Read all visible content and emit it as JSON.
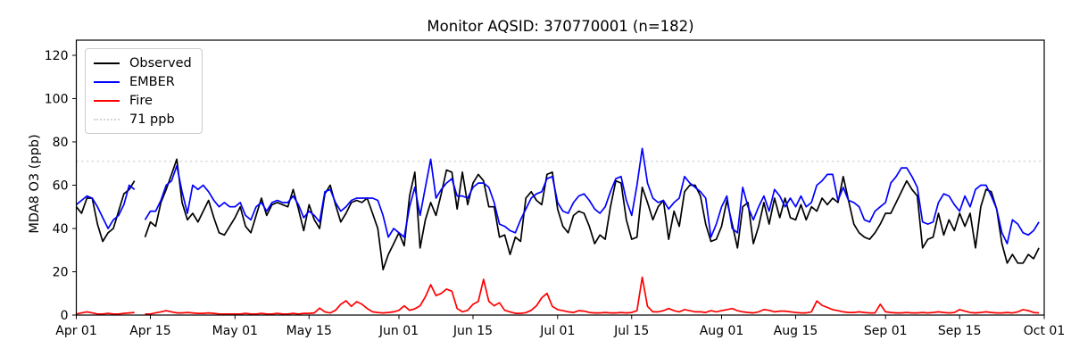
{
  "title": "Monitor AQSID: 370770001 (n=182)",
  "chart_data": {
    "type": "line",
    "title": "Monitor AQSID: 370770001 (n=182)",
    "xlabel": "",
    "ylabel": "MDA8 O3 (ppb)",
    "ylim": [
      0,
      127
    ],
    "y_ticks": [
      0,
      20,
      40,
      60,
      80,
      100,
      120
    ],
    "x_total_days": 183,
    "x_ticks": [
      {
        "label": "Apr 01",
        "day": 0
      },
      {
        "label": "Apr 15",
        "day": 14
      },
      {
        "label": "May 01",
        "day": 30
      },
      {
        "label": "May 15",
        "day": 44
      },
      {
        "label": "Jun 01",
        "day": 61
      },
      {
        "label": "Jun 15",
        "day": 75
      },
      {
        "label": "Jul 01",
        "day": 91
      },
      {
        "label": "Jul 15",
        "day": 105
      },
      {
        "label": "Aug 01",
        "day": 122
      },
      {
        "label": "Aug 15",
        "day": 136
      },
      {
        "label": "Sep 01",
        "day": 153
      },
      {
        "label": "Sep 15",
        "day": 167
      },
      {
        "label": "Oct 01",
        "day": 183
      }
    ],
    "grid": false,
    "legend_position": "upper left",
    "threshold": {
      "value": 71,
      "label": "71 ppb",
      "color": "#d3d3d3",
      "style": "dotted"
    },
    "series": [
      {
        "name": "Observed",
        "color": "#000000",
        "values": [
          50,
          47,
          54,
          54,
          42,
          34,
          38,
          40,
          48,
          56,
          58,
          62,
          null,
          36,
          43,
          41,
          52,
          58,
          65,
          72,
          52,
          44,
          47,
          43,
          48,
          53,
          45,
          38,
          37,
          41,
          45,
          50,
          41,
          38,
          46,
          54,
          46,
          51,
          52,
          51,
          50,
          58,
          49,
          39,
          51,
          44,
          40,
          56,
          60,
          51,
          43,
          47,
          52,
          53,
          52,
          54,
          47,
          40,
          21,
          28,
          33,
          38,
          32,
          55,
          66,
          31,
          44,
          52,
          46,
          56,
          67,
          66,
          49,
          66,
          51,
          61,
          65,
          62,
          50,
          50,
          36,
          37,
          28,
          36,
          34,
          54,
          57,
          53,
          51,
          65,
          66,
          49,
          41,
          38,
          46,
          48,
          47,
          41,
          33,
          37,
          35,
          50,
          62,
          61,
          44,
          35,
          36,
          59,
          52,
          44,
          50,
          53,
          35,
          48,
          41,
          57,
          60,
          60,
          55,
          42,
          34,
          35,
          41,
          53,
          42,
          31,
          50,
          52,
          33,
          41,
          52,
          42,
          54,
          45,
          54,
          45,
          44,
          51,
          44,
          50,
          48,
          54,
          51,
          54,
          52,
          64,
          53,
          42,
          38,
          36,
          35,
          38,
          42,
          47,
          47,
          52,
          57,
          62,
          58,
          55,
          31,
          35,
          36,
          47,
          37,
          44,
          39,
          47,
          41,
          47,
          31,
          50,
          58,
          57,
          49,
          33,
          24,
          28,
          24,
          24,
          28,
          26,
          31
        ]
      },
      {
        "name": "EMBER",
        "color": "#0000ff",
        "values": [
          51,
          53,
          55,
          54,
          50,
          45,
          40,
          44,
          46,
          51,
          60,
          58,
          null,
          44,
          48,
          48,
          53,
          60,
          62,
          69,
          57,
          47,
          60,
          58,
          60,
          57,
          53,
          50,
          52,
          50,
          50,
          52,
          46,
          44,
          50,
          52,
          48,
          52,
          53,
          52,
          52,
          55,
          51,
          45,
          48,
          46,
          43,
          57,
          58,
          52,
          48,
          50,
          53,
          54,
          54,
          54,
          54,
          53,
          46,
          36,
          40,
          38,
          36,
          50,
          59,
          46,
          59,
          72,
          54,
          58,
          61,
          63,
          55,
          55,
          54,
          59,
          61,
          61,
          59,
          52,
          42,
          41,
          39,
          38,
          44,
          49,
          54,
          56,
          57,
          63,
          64,
          52,
          48,
          47,
          52,
          55,
          56,
          53,
          49,
          47,
          50,
          57,
          63,
          64,
          53,
          46,
          60,
          77,
          61,
          54,
          52,
          53,
          49,
          52,
          54,
          64,
          61,
          59,
          57,
          54,
          36,
          42,
          50,
          55,
          40,
          38,
          59,
          50,
          44,
          50,
          55,
          48,
          58,
          55,
          50,
          54,
          50,
          55,
          50,
          52,
          60,
          62,
          65,
          65,
          53,
          59,
          53,
          52,
          50,
          44,
          43,
          48,
          50,
          52,
          61,
          64,
          68,
          68,
          64,
          59,
          43,
          42,
          43,
          52,
          56,
          55,
          51,
          48,
          55,
          50,
          58,
          60,
          60,
          55,
          49,
          38,
          33,
          44,
          42,
          38,
          37,
          39,
          43
        ]
      },
      {
        "name": "Fire",
        "color": "#ff0000",
        "values": [
          0.5,
          1,
          1.5,
          1,
          0.5,
          0.5,
          0.8,
          0.5,
          0.5,
          0.8,
          1,
          1.2,
          null,
          0.5,
          0.5,
          1,
          1.5,
          2,
          1.5,
          1,
          1,
          1.2,
          1,
          0.8,
          0.8,
          1,
          0.8,
          0.5,
          0.5,
          0.5,
          0.5,
          0.5,
          0.8,
          0.5,
          0.5,
          0.8,
          0.5,
          0.5,
          0.8,
          0.5,
          0.5,
          0.8,
          0.5,
          0.8,
          0.8,
          1,
          3.2,
          1.5,
          1,
          2.2,
          5,
          6.6,
          4,
          6.2,
          5,
          3,
          1.5,
          1.2,
          1,
          1.2,
          1.5,
          2.2,
          4.3,
          2.2,
          2.9,
          4.3,
          8.4,
          14,
          9,
          10,
          12,
          11,
          3,
          1.5,
          2.2,
          5,
          6.3,
          16.5,
          6.3,
          4.3,
          5.7,
          2.2,
          1.5,
          0.8,
          0.8,
          1.1,
          2.2,
          4.3,
          8,
          10,
          4,
          2.5,
          2,
          1.5,
          1.2,
          2,
          1.8,
          1.2,
          1,
          1,
          1.2,
          1,
          1,
          1.2,
          1,
          1.2,
          2,
          17.5,
          4,
          1.5,
          1.5,
          2,
          3,
          2,
          1.5,
          2.5,
          2,
          1.5,
          1.5,
          1.2,
          2,
          1.5,
          2,
          2.5,
          3,
          2,
          1.5,
          1.2,
          1,
          1.5,
          2.5,
          2.2,
          1.5,
          1.8,
          1.8,
          1.5,
          1.2,
          1,
          1,
          1.5,
          6.5,
          4.5,
          3.5,
          2.5,
          2,
          1.5,
          1.2,
          1.2,
          1.5,
          1.2,
          1,
          1,
          5,
          1.5,
          1.2,
          1,
          1,
          1.2,
          1,
          1,
          1.2,
          1,
          1.2,
          1.5,
          1.2,
          1,
          1.2,
          2.5,
          1.8,
          1.2,
          1,
          1.2,
          1.5,
          1.2,
          1,
          1,
          1.2,
          1,
          1.5,
          2.5,
          2,
          1.2,
          1
        ]
      }
    ]
  },
  "legend": {
    "items": [
      {
        "label": "Observed",
        "color": "#000000",
        "dash": "solid"
      },
      {
        "label": "EMBER",
        "color": "#0000ff",
        "dash": "solid"
      },
      {
        "label": "Fire",
        "color": "#ff0000",
        "dash": "solid"
      },
      {
        "label": "71 ppb",
        "color": "#d3d3d3",
        "dash": "dotted"
      }
    ]
  }
}
